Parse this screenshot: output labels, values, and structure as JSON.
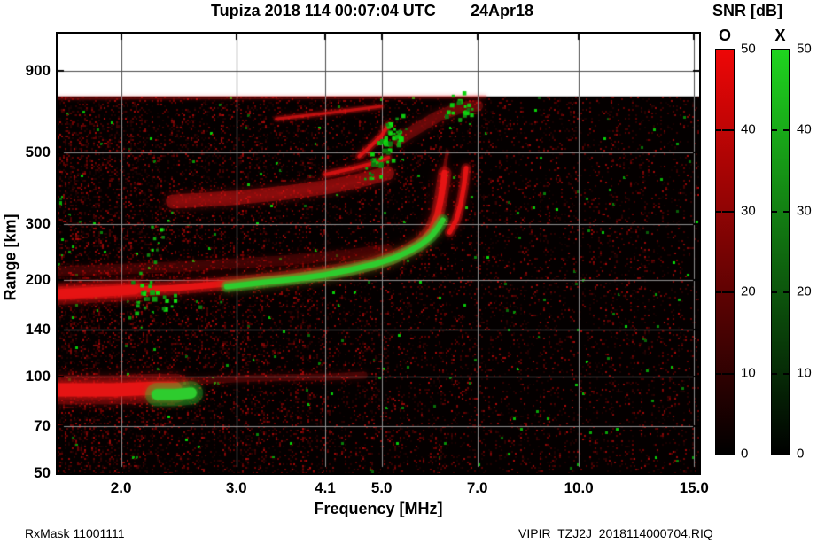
{
  "header": {
    "title": "Tupiza 2018 114 00:07:04 UTC",
    "date": "24Apr18"
  },
  "colorbar": {
    "title": "SNR [dB]",
    "min": 0,
    "max": 50,
    "tick_values": [
      0,
      10,
      20,
      30,
      40,
      50
    ],
    "bars": [
      {
        "mode": "O",
        "top_color": "#ee0606",
        "bottom_color": "#000000"
      },
      {
        "mode": "X",
        "top_color": "#1fd41f",
        "bottom_color": "#000000"
      }
    ]
  },
  "footer": {
    "left": "RxMask 11001111",
    "right": "VIPIR  TZJ2J_2018114000704.RIQ"
  },
  "chart_data": {
    "type": "heatmap",
    "title": "Tupiza 2018 114 00:07:04 UTC 24Apr18",
    "xlabel": "Frequency [MHz]",
    "ylabel": "Range [km]",
    "x_scale": "log",
    "y_scale": "log",
    "x_range": [
      1.6,
      15.27
    ],
    "y_range": [
      50,
      1177
    ],
    "x_ticks": [
      2.0,
      3.0,
      4.1,
      5.0,
      7.0,
      10.0,
      15.0
    ],
    "x_tick_labels": [
      "2.0",
      "3.0",
      "4.1",
      "5.0",
      "7.0",
      "10.0",
      "15.0"
    ],
    "y_ticks": [
      50,
      70,
      100,
      140,
      200,
      300,
      500,
      900
    ],
    "y_tick_labels": [
      "50",
      "70",
      "100",
      "140",
      "200",
      "300",
      "500",
      "900"
    ],
    "grid": true,
    "data_top_km": 750,
    "background": "#040000",
    "grid_color_on_data": "#8e8e8e",
    "grid_color_on_white": "#4b4b4b",
    "modes": {
      "O": {
        "label": "O",
        "color": "#e51414",
        "meaning": "ordinary mode (red)"
      },
      "X": {
        "label": "X",
        "color": "#2ecc2e",
        "meaning": "extraordinary mode (green)"
      }
    },
    "features": [
      {
        "name": "E-layer O band",
        "mode": "O",
        "style": "trace",
        "width": 15,
        "alpha": 1,
        "glow": 6,
        "points": [
          [
            1.6,
            91
          ],
          [
            1.95,
            91
          ],
          [
            2.25,
            92
          ],
          [
            2.42,
            92
          ]
        ]
      },
      {
        "name": "E-layer X patch",
        "mode": "X",
        "style": "trace",
        "width": 12,
        "alpha": 1,
        "glow": 3,
        "points": [
          [
            2.27,
            88
          ],
          [
            2.42,
            88
          ],
          [
            2.56,
            89
          ]
        ]
      },
      {
        "name": "E-layer faint extension",
        "mode": "O",
        "style": "diffuse",
        "width": 8,
        "alpha": 0.2,
        "glow": 8,
        "points": [
          [
            2.5,
            97
          ],
          [
            3.2,
            99
          ],
          [
            4.2,
            100
          ],
          [
            4.7,
            101
          ]
        ]
      },
      {
        "name": "F-trace O-mode",
        "mode": "O",
        "style": "trace",
        "width": 7,
        "alpha": 1,
        "glow": 7,
        "points": [
          [
            1.6,
            182
          ],
          [
            2.0,
            186
          ],
          [
            2.4,
            189
          ],
          [
            2.8,
            194
          ],
          [
            3.2,
            199
          ],
          [
            3.6,
            204
          ],
          [
            4.1,
            211
          ],
          [
            4.5,
            218
          ],
          [
            4.9,
            227
          ],
          [
            5.2,
            236
          ],
          [
            5.5,
            249
          ],
          [
            5.75,
            263
          ],
          [
            5.95,
            287
          ],
          [
            6.08,
            318
          ],
          [
            6.15,
            355
          ],
          [
            6.21,
            400
          ],
          [
            6.24,
            432
          ]
        ]
      },
      {
        "name": "F-trace O-mode thick start",
        "mode": "O",
        "style": "trace",
        "width": 11,
        "alpha": 0.9,
        "glow": 5,
        "points": [
          [
            1.6,
            181
          ],
          [
            1.85,
            184
          ],
          [
            2.1,
            187
          ]
        ]
      },
      {
        "name": "F-trace X-mode",
        "mode": "X",
        "style": "trace",
        "width": 6,
        "alpha": 1,
        "glow": 5,
        "points": [
          [
            2.9,
            191
          ],
          [
            3.3,
            197
          ],
          [
            3.7,
            202
          ],
          [
            4.1,
            208
          ],
          [
            4.5,
            216
          ],
          [
            4.9,
            225
          ],
          [
            5.2,
            234
          ],
          [
            5.5,
            246
          ],
          [
            5.75,
            259
          ],
          [
            5.95,
            274
          ],
          [
            6.1,
            292
          ],
          [
            6.2,
            308
          ]
        ]
      },
      {
        "name": "F cusp second branch",
        "mode": "O",
        "style": "trace",
        "width": 5,
        "alpha": 0.95,
        "glow": 5,
        "points": [
          [
            6.35,
            282
          ],
          [
            6.5,
            308
          ],
          [
            6.6,
            345
          ],
          [
            6.68,
            395
          ],
          [
            6.73,
            448
          ]
        ]
      },
      {
        "name": "F cusp upward wisp",
        "mode": "O",
        "style": "diffuse",
        "width": 4,
        "alpha": 0.3,
        "glow": 5,
        "points": [
          [
            6.22,
            432
          ],
          [
            6.3,
            505
          ]
        ]
      },
      {
        "name": "second-hop diffuse band",
        "mode": "O",
        "style": "diffuse",
        "width": 16,
        "alpha": 0.38,
        "glow": 10,
        "points": [
          [
            2.4,
            352
          ],
          [
            3.0,
            362
          ],
          [
            3.6,
            376
          ],
          [
            4.2,
            393
          ],
          [
            4.7,
            413
          ],
          [
            5.1,
            432
          ]
        ]
      },
      {
        "name": "second-hop top edge",
        "mode": "O",
        "style": "trace",
        "width": 4,
        "alpha": 0.75,
        "glow": 5,
        "points": [
          [
            4.1,
            428
          ],
          [
            4.5,
            446
          ],
          [
            4.9,
            466
          ],
          [
            5.12,
            483
          ]
        ]
      },
      {
        "name": "second-hop cusp streak",
        "mode": "O",
        "style": "trace",
        "width": 4,
        "alpha": 0.8,
        "glow": 5,
        "points": [
          [
            4.62,
            487
          ],
          [
            4.8,
            522
          ],
          [
            5.0,
            566
          ],
          [
            5.12,
            612
          ]
        ]
      },
      {
        "name": "upper diffuse patch",
        "mode": "O",
        "style": "diffuse",
        "width": 13,
        "alpha": 0.28,
        "glow": 10,
        "points": [
          [
            5.3,
            548
          ],
          [
            5.7,
            600
          ],
          [
            6.1,
            650
          ],
          [
            6.55,
            688
          ],
          [
            7.0,
            702
          ]
        ]
      },
      {
        "name": "top echo trace",
        "mode": "O",
        "style": "trace",
        "width": 3,
        "alpha": 0.65,
        "glow": 4,
        "points": [
          [
            3.45,
            638
          ],
          [
            4.2,
            668
          ],
          [
            5.0,
            698
          ]
        ]
      },
      {
        "name": "top edge noise band",
        "mode": "O",
        "style": "diffuse",
        "width": 4,
        "alpha": 0.25,
        "glow": 4,
        "points": [
          [
            1.6,
            740
          ],
          [
            4.0,
            744
          ],
          [
            7.2,
            748
          ]
        ]
      },
      {
        "name": "near-trace noise band",
        "mode": "O",
        "style": "diffuse",
        "width": 12,
        "alpha": 0.16,
        "glow": 8,
        "points": [
          [
            1.6,
            213
          ],
          [
            2.5,
            221
          ],
          [
            3.5,
            230
          ],
          [
            4.5,
            241
          ],
          [
            5.1,
            250
          ]
        ]
      },
      {
        "name": "X speckles along second-hop cusp",
        "mode": "X",
        "style": "speckles",
        "count": 55,
        "size": 4,
        "points": [
          [
            4.75,
            432
          ],
          [
            5.0,
            478
          ],
          [
            5.15,
            556
          ],
          [
            5.3,
            628
          ]
        ]
      },
      {
        "name": "X speckles upper right",
        "mode": "X",
        "style": "speckles",
        "count": 22,
        "size": 4,
        "points": [
          [
            6.25,
            655
          ],
          [
            6.55,
            700
          ],
          [
            6.85,
            735
          ]
        ]
      },
      {
        "name": "X speckles left column",
        "mode": "X",
        "style": "speckles",
        "count": 26,
        "size": 3,
        "points": [
          [
            2.08,
            150
          ],
          [
            2.2,
            235
          ],
          [
            2.32,
            330
          ]
        ]
      },
      {
        "name": "X speckles below F-trace",
        "mode": "X",
        "style": "speckles",
        "count": 18,
        "size": 4,
        "points": [
          [
            2.08,
            170
          ],
          [
            2.5,
            176
          ],
          [
            3.05,
            182
          ]
        ]
      }
    ]
  }
}
